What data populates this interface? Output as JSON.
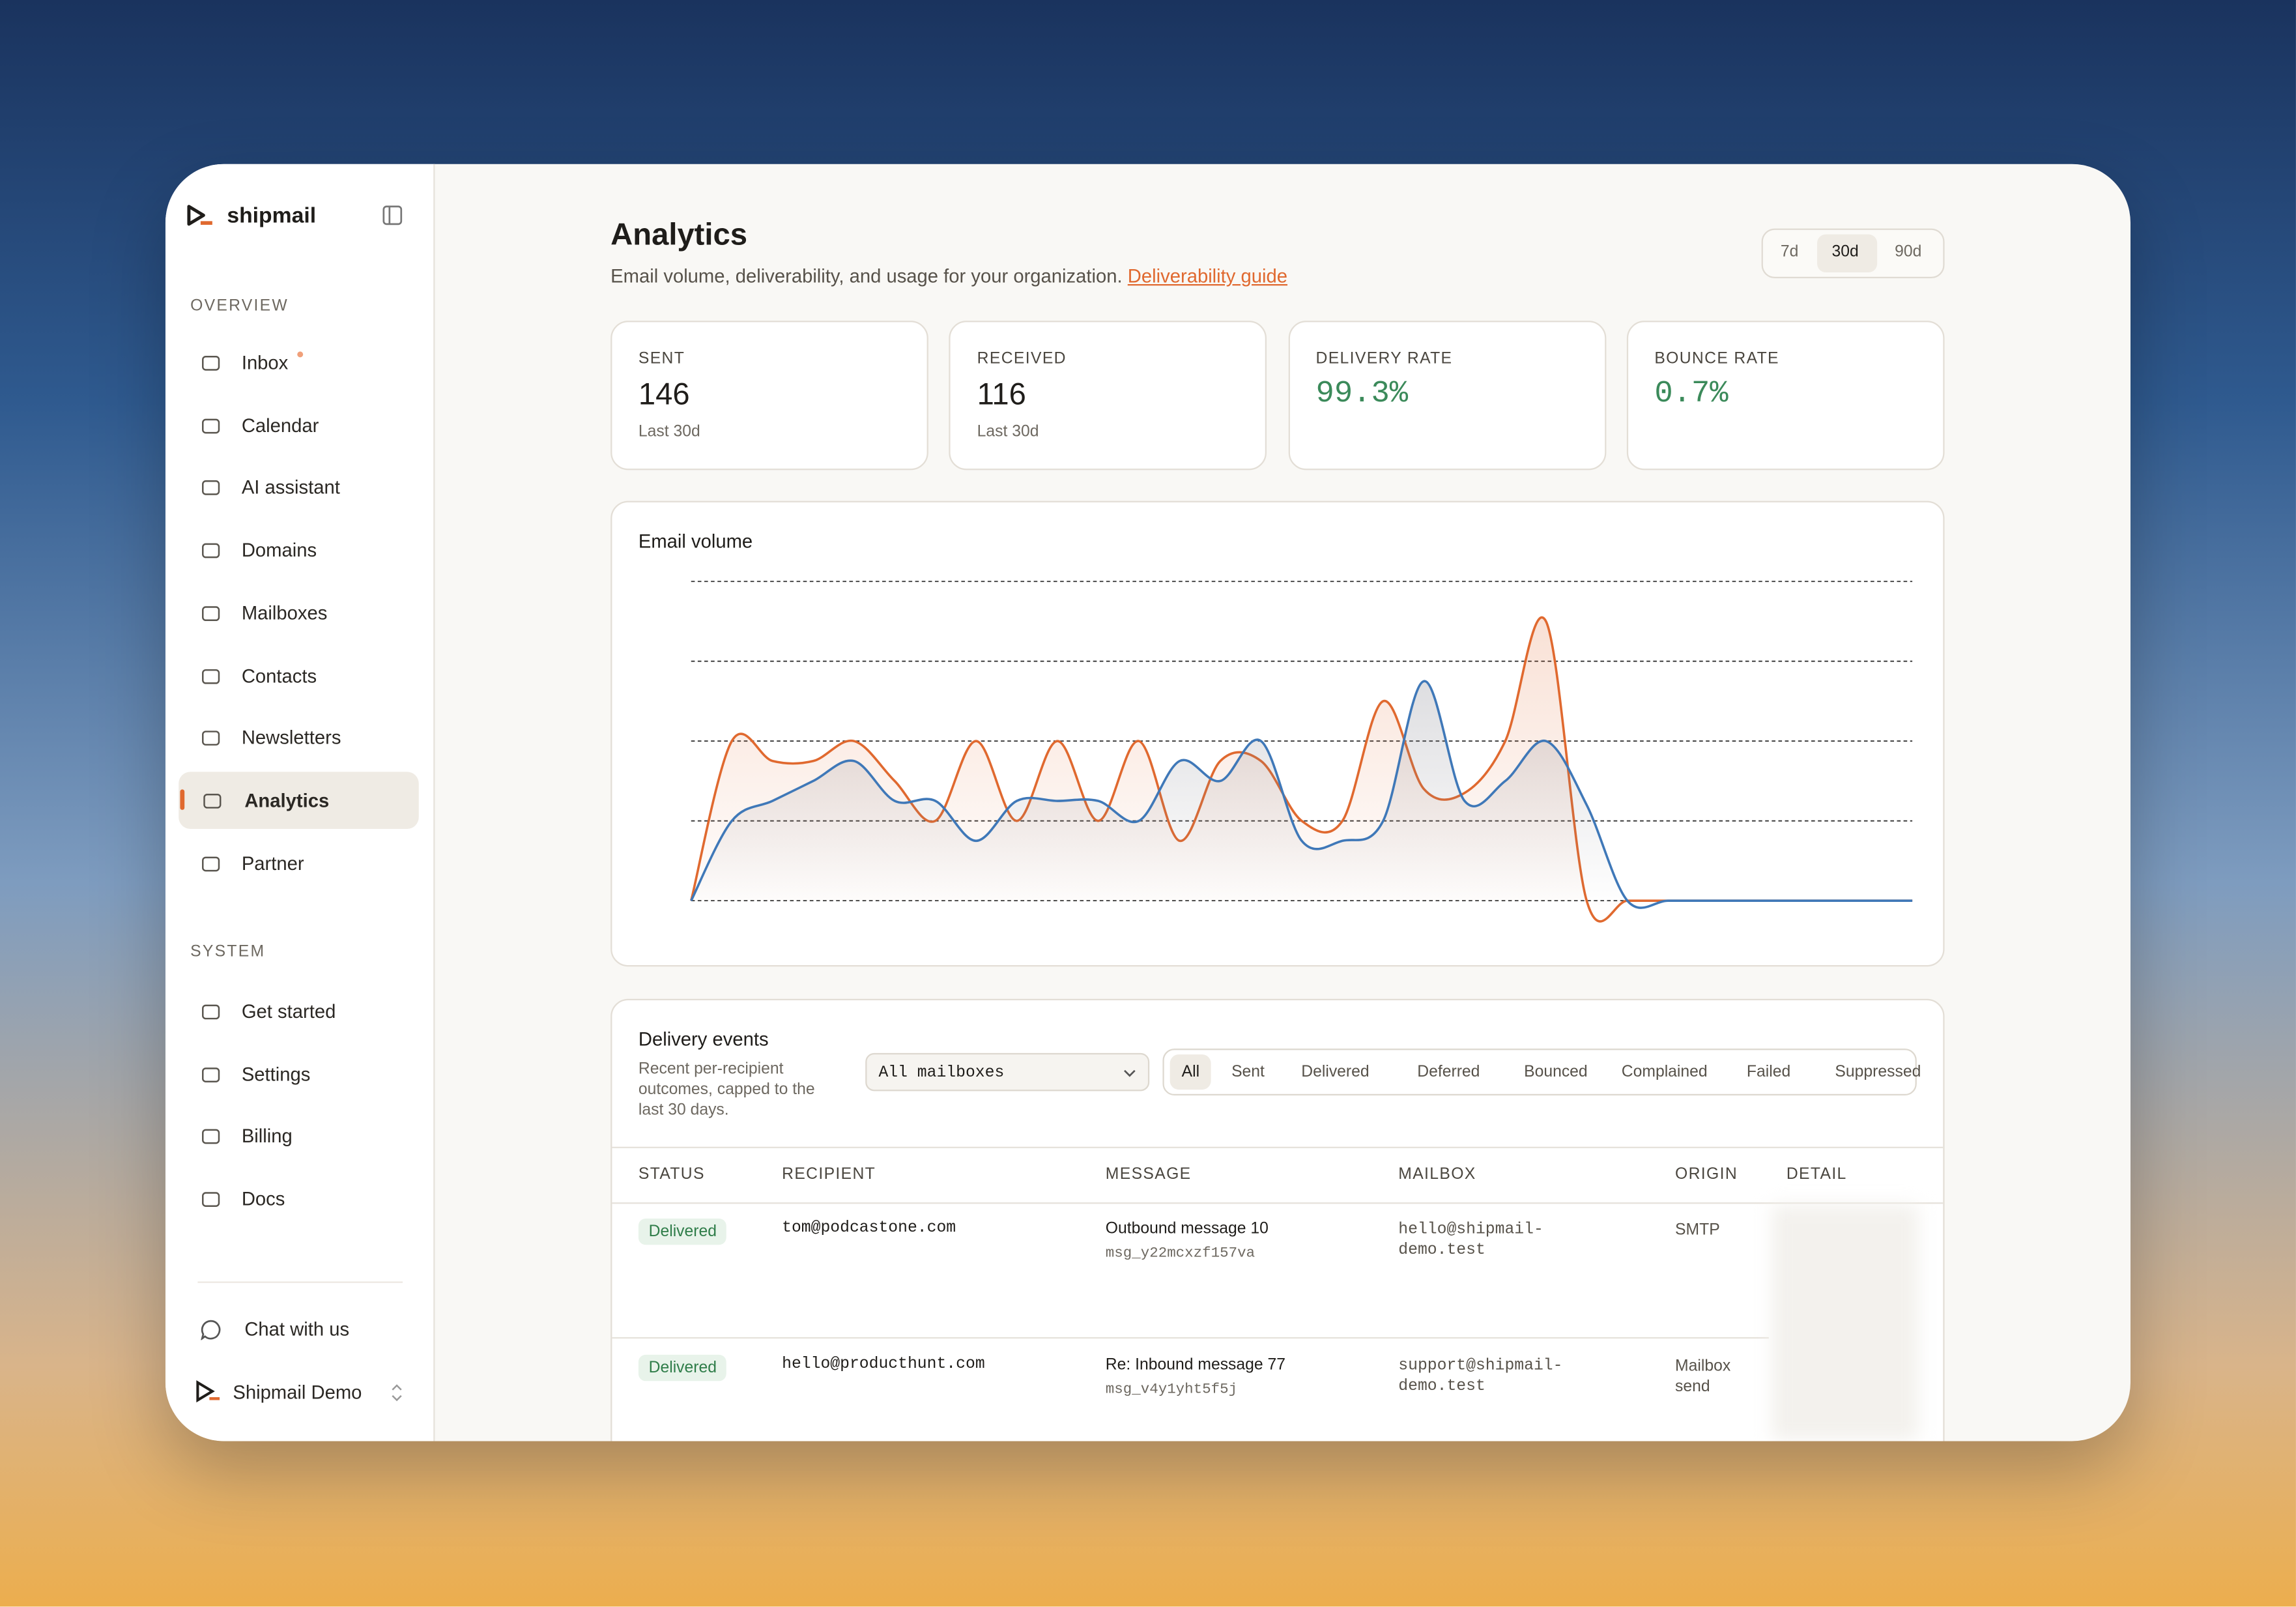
{
  "sidebar": {
    "brand": "shipmail",
    "overview": {
      "label": "OVERVIEW",
      "items": [
        "Inbox",
        "Calendar",
        "AI assistant",
        "Domains",
        "Mailboxes",
        "Contacts",
        "Newsletters",
        "Analytics",
        "Partner"
      ]
    },
    "system": {
      "label": "SYSTEM",
      "items": [
        "Get started",
        "Settings",
        "Billing",
        "Docs"
      ]
    },
    "chat": "Chat with us",
    "workspace": "Shipmail Demo"
  },
  "header": {
    "title": "Analytics",
    "subtitle": "Email volume, deliverability, and usage for your organization.",
    "link": "Deliverability guide",
    "ranges": [
      "7d",
      "30d",
      "90d"
    ]
  },
  "stats": [
    {
      "label": "SENT",
      "value": "146",
      "note": "Last 30d"
    },
    {
      "label": "RECEIVED",
      "value": "116",
      "note": "Last 30d"
    },
    {
      "label": "DELIVERY RATE",
      "value": "99.3%"
    },
    {
      "label": "BOUNCE RATE",
      "value": "0.7%"
    }
  ],
  "chart_data": {
    "type": "line",
    "title": "Email volume",
    "categories": [
      null,
      null,
      null,
      null,
      null,
      null,
      null,
      null,
      null,
      null,
      null,
      null,
      null,
      null,
      null,
      null,
      null,
      null,
      null,
      null,
      null,
      null,
      null,
      null,
      null,
      null,
      null,
      null,
      null,
      null,
      null
    ],
    "series": [
      {
        "color": "#e0692f",
        "values": [
          0,
          2,
          1.75,
          1.75,
          2,
          1.5,
          1,
          2,
          1,
          2,
          1,
          2,
          0.75,
          1.75,
          1.75,
          1,
          1,
          2.5,
          1.4,
          1.35,
          2,
          3.5,
          0,
          0,
          0,
          0,
          0,
          0,
          0,
          0,
          0
        ]
      },
      {
        "color": "#3f78b8",
        "values": [
          0,
          1,
          1.25,
          1.5,
          1.75,
          1.25,
          1.25,
          0.75,
          1.25,
          1.25,
          1.25,
          1,
          1.75,
          1.5,
          2,
          0.75,
          0.75,
          1,
          2.75,
          1.25,
          1.5,
          2,
          1.2,
          0,
          0,
          0,
          0,
          0,
          0,
          0,
          0
        ]
      }
    ],
    "ylim": [
      0,
      4
    ],
    "yticks": [
      0,
      1,
      2,
      3,
      4
    ],
    "grid": true
  },
  "events": {
    "title": "Delivery events",
    "description": "Recent per-recipient outcomes, capped to the last 30 days.",
    "select": "All mailboxes",
    "filters": [
      "All",
      "Sent",
      "Delivered",
      "Deferred",
      "Bounced",
      "Complained",
      "Failed",
      "Suppressed"
    ],
    "columns": [
      "STATUS",
      "RECIPIENT",
      "MESSAGE",
      "MAILBOX",
      "ORIGIN",
      "DETAIL"
    ],
    "rows": [
      [
        "Delivered",
        "tom@podcastone.com",
        "Outbound message 10",
        "msg_y22mcxzf157va",
        "hello@shipmail-demo.test",
        "SMTP"
      ],
      [
        "Delivered",
        "hello@producthunt.com",
        "Re: Inbound message 77",
        "msg_v4y1yht5f5j",
        "support@shipmail-demo.test",
        "Mailbox send"
      ]
    ]
  }
}
